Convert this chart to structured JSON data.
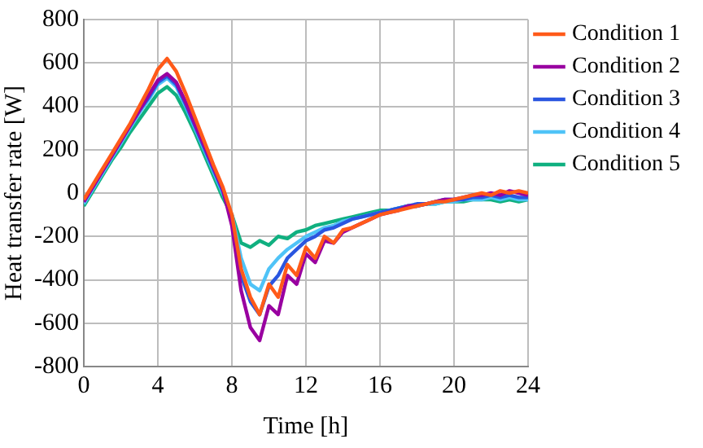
{
  "chart_data": {
    "type": "line",
    "xlabel": "Time [h]",
    "ylabel": "Heat transfer rate [W]",
    "x": [
      0,
      0.5,
      1,
      1.5,
      2,
      2.5,
      3,
      3.5,
      4,
      4.5,
      5,
      5.5,
      6,
      6.5,
      7,
      7.5,
      8,
      8.5,
      9,
      9.5,
      10,
      10.5,
      11,
      11.5,
      12,
      12.5,
      13,
      13.5,
      14,
      14.5,
      15,
      15.5,
      16,
      16.5,
      17,
      17.5,
      18,
      18.5,
      19,
      19.5,
      20,
      20.5,
      21,
      21.5,
      22,
      22.5,
      23,
      23.5,
      24
    ],
    "series": [
      {
        "name": "Condition 1",
        "color": "#ff5a19",
        "values": [
          -30,
          40,
          110,
          180,
          250,
          320,
          400,
          480,
          570,
          620,
          560,
          460,
          350,
          240,
          130,
          30,
          -100,
          -350,
          -480,
          -560,
          -420,
          -480,
          -330,
          -380,
          -250,
          -300,
          -200,
          -230,
          -170,
          -160,
          -140,
          -120,
          -100,
          -90,
          -80,
          -70,
          -60,
          -50,
          -40,
          -40,
          -30,
          -20,
          -10,
          0,
          -10,
          10,
          0,
          10,
          0
        ]
      },
      {
        "name": "Condition 2",
        "color": "#9900a0",
        "values": [
          -40,
          30,
          100,
          170,
          240,
          310,
          380,
          450,
          520,
          550,
          510,
          420,
          320,
          220,
          120,
          20,
          -150,
          -450,
          -620,
          -680,
          -520,
          -560,
          -380,
          -420,
          -280,
          -320,
          -220,
          -230,
          -180,
          -160,
          -140,
          -120,
          -100,
          -90,
          -80,
          -60,
          -60,
          -50,
          -40,
          -30,
          -30,
          -20,
          -10,
          -10,
          0,
          -10,
          10,
          0,
          -10
        ]
      },
      {
        "name": "Condition 3",
        "color": "#2a56e0",
        "values": [
          -40,
          30,
          100,
          170,
          240,
          310,
          380,
          440,
          510,
          540,
          500,
          410,
          310,
          210,
          110,
          10,
          -120,
          -380,
          -500,
          -560,
          -430,
          -380,
          -300,
          -260,
          -220,
          -200,
          -170,
          -160,
          -140,
          -120,
          -110,
          -100,
          -90,
          -80,
          -70,
          -60,
          -50,
          -50,
          -40,
          -30,
          -30,
          -30,
          -20,
          -20,
          -10,
          -20,
          -10,
          -20,
          -20
        ]
      },
      {
        "name": "Condition 4",
        "color": "#4fc3f7",
        "values": [
          -50,
          20,
          90,
          160,
          230,
          300,
          370,
          430,
          500,
          530,
          490,
          400,
          300,
          200,
          100,
          0,
          -100,
          -300,
          -420,
          -450,
          -350,
          -300,
          -260,
          -230,
          -200,
          -180,
          -160,
          -150,
          -130,
          -120,
          -110,
          -100,
          -90,
          -80,
          -70,
          -60,
          -60,
          -50,
          -50,
          -40,
          -40,
          -30,
          -30,
          -30,
          -20,
          -30,
          -20,
          -30,
          -30
        ]
      },
      {
        "name": "Condition 5",
        "color": "#10b080",
        "values": [
          -60,
          10,
          80,
          150,
          210,
          280,
          340,
          400,
          460,
          490,
          450,
          370,
          280,
          180,
          80,
          -20,
          -100,
          -230,
          -250,
          -220,
          -240,
          -200,
          -210,
          -180,
          -170,
          -150,
          -140,
          -130,
          -120,
          -110,
          -100,
          -90,
          -80,
          -80,
          -70,
          -60,
          -60,
          -50,
          -50,
          -40,
          -40,
          -40,
          -30,
          -30,
          -30,
          -40,
          -30,
          -40,
          -30
        ]
      }
    ],
    "xlim": [
      0,
      24
    ],
    "xticks": [
      0,
      4,
      8,
      12,
      16,
      20,
      24
    ],
    "ylim": [
      -800,
      800
    ],
    "yticks": [
      -800,
      -600,
      -400,
      -200,
      0,
      200,
      400,
      600,
      800
    ],
    "grid": true,
    "legend": "right",
    "marker": "none",
    "line_style": "solid"
  }
}
